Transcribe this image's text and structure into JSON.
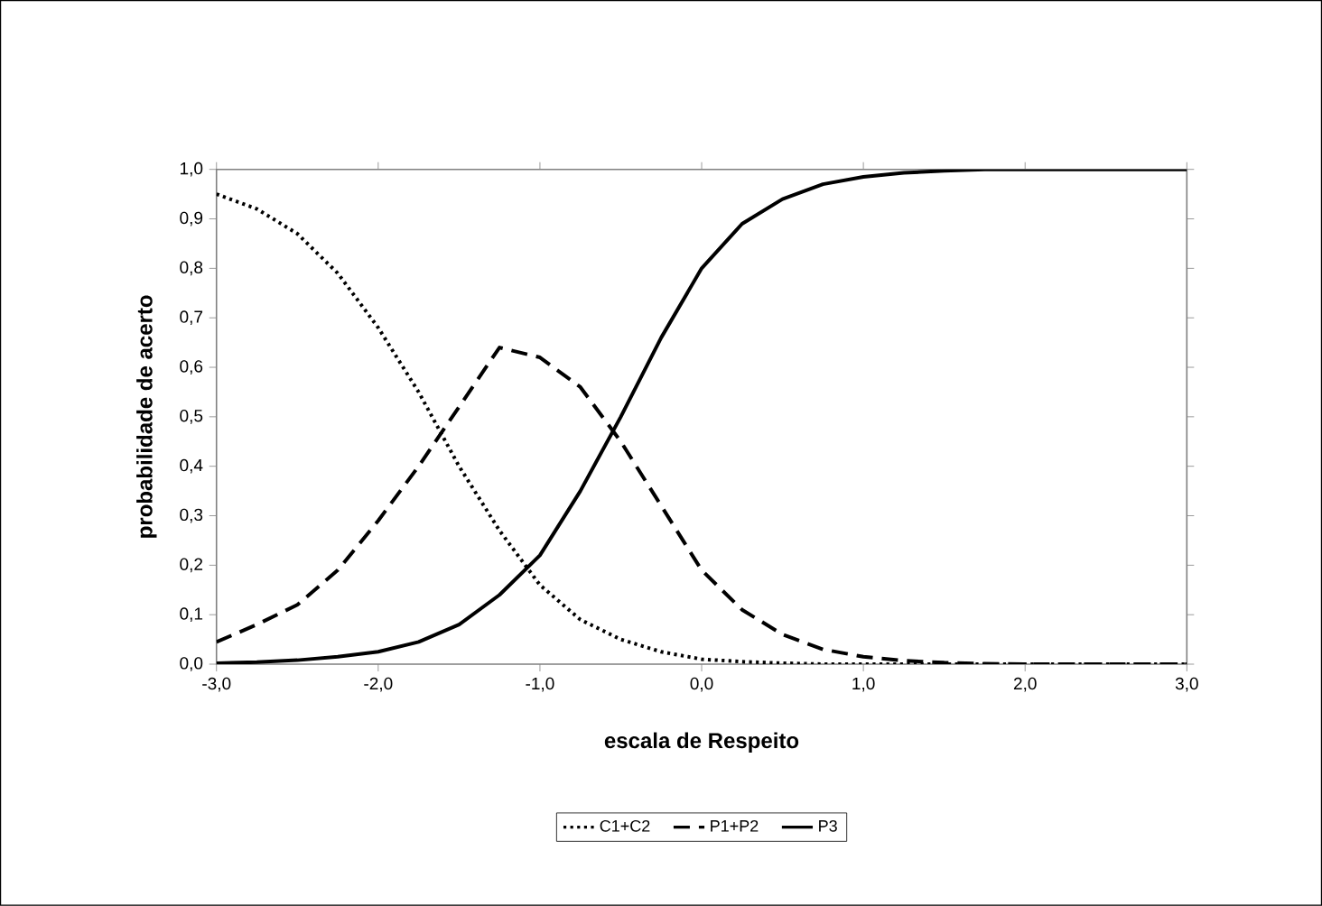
{
  "chart_data": {
    "type": "line",
    "xlabel": "escala de  Respeito",
    "ylabel": "probabilidade de acerto",
    "x": [
      -3,
      -2.75,
      -2.5,
      -2.25,
      -2,
      -1.75,
      -1.5,
      -1.25,
      -1,
      -0.75,
      -0.5,
      -0.25,
      0,
      0.25,
      0.5,
      0.75,
      1,
      1.25,
      1.5,
      1.75,
      2,
      2.25,
      2.5,
      2.75,
      3
    ],
    "series": [
      {
        "name": "C1+C2",
        "color": "#000000",
        "line_style": "dotted",
        "values": [
          0.95,
          0.92,
          0.87,
          0.79,
          0.68,
          0.55,
          0.4,
          0.27,
          0.16,
          0.09,
          0.05,
          0.025,
          0.01,
          0.005,
          0.002,
          0,
          0,
          0,
          0,
          0,
          0,
          0,
          0,
          0,
          0
        ]
      },
      {
        "name": "P1+P2",
        "color": "#000000",
        "line_style": "dashed",
        "values": [
          0.045,
          0.08,
          0.12,
          0.19,
          0.29,
          0.4,
          0.52,
          0.64,
          0.62,
          0.56,
          0.45,
          0.32,
          0.19,
          0.11,
          0.06,
          0.03,
          0.015,
          0.007,
          0.003,
          0.001,
          0,
          0,
          0,
          0,
          0
        ]
      },
      {
        "name": "P3",
        "color": "#000000",
        "line_style": "solid",
        "values": [
          0.002,
          0.004,
          0.008,
          0.015,
          0.025,
          0.045,
          0.08,
          0.14,
          0.22,
          0.35,
          0.5,
          0.66,
          0.8,
          0.89,
          0.94,
          0.97,
          0.985,
          0.993,
          0.997,
          1,
          1,
          1,
          1,
          1,
          1
        ]
      }
    ],
    "xlim": [
      -3,
      3
    ],
    "ylim": [
      0,
      1
    ],
    "xticks": [
      {
        "value": -3,
        "label": "-3,0"
      },
      {
        "value": -2,
        "label": "-2,0"
      },
      {
        "value": -1,
        "label": "-1,0"
      },
      {
        "value": 0,
        "label": "0,0"
      },
      {
        "value": 1,
        "label": "1,0"
      },
      {
        "value": 2,
        "label": "2,0"
      },
      {
        "value": 3,
        "label": "3,0"
      }
    ],
    "yticks": [
      {
        "value": 0,
        "label": "0,0"
      },
      {
        "value": 0.1,
        "label": "0,1"
      },
      {
        "value": 0.2,
        "label": "0,2"
      },
      {
        "value": 0.3,
        "label": "0,3"
      },
      {
        "value": 0.4,
        "label": "0,4"
      },
      {
        "value": 0.5,
        "label": "0,5"
      },
      {
        "value": 0.6,
        "label": "0,6"
      },
      {
        "value": 0.7,
        "label": "0,7"
      },
      {
        "value": 0.8,
        "label": "0,8"
      },
      {
        "value": 0.9,
        "label": "0,9"
      },
      {
        "value": 1,
        "label": "1,0"
      }
    ],
    "grid": false,
    "legend": "bottom",
    "marker": "none"
  }
}
